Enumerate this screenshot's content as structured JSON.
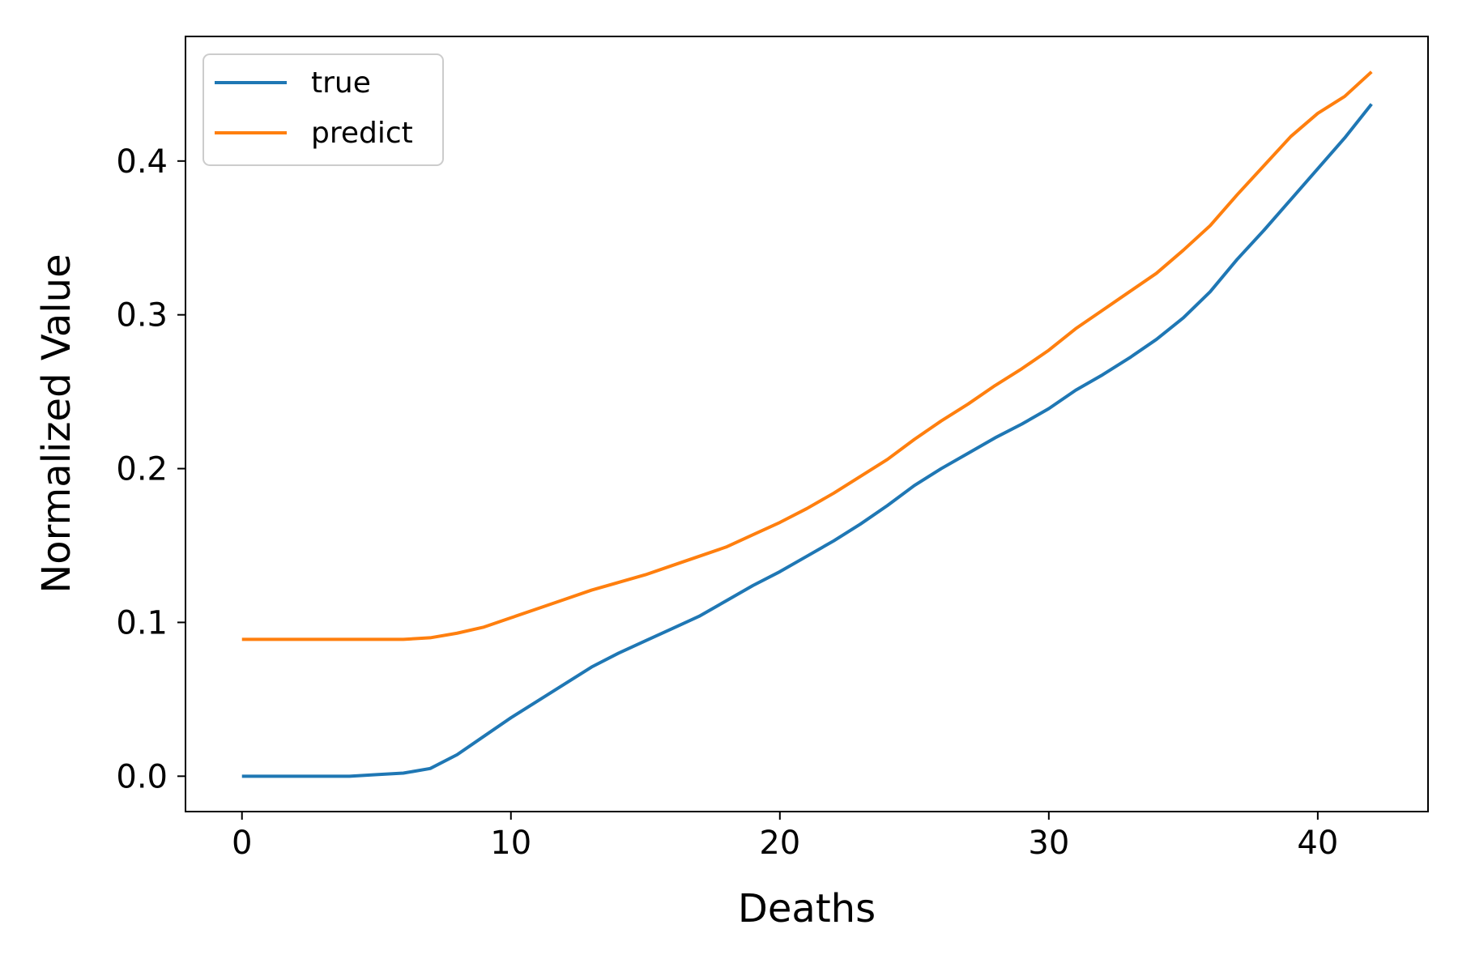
{
  "chart_data": {
    "type": "line",
    "xlabel": "Deaths",
    "ylabel": "Normalized Value",
    "xlim": [
      -2.1,
      44.1
    ],
    "ylim": [
      -0.023,
      0.481
    ],
    "xticks": [
      0,
      10,
      20,
      30,
      40
    ],
    "xtick_labels": [
      "0",
      "10",
      "20",
      "30",
      "40"
    ],
    "yticks": [
      0.0,
      0.1,
      0.2,
      0.3,
      0.4
    ],
    "ytick_labels": [
      "0.0",
      "0.1",
      "0.2",
      "0.3",
      "0.4"
    ],
    "grid": false,
    "legend_position": "upper-left",
    "x": [
      0,
      1,
      2,
      3,
      4,
      5,
      6,
      7,
      8,
      9,
      10,
      11,
      12,
      13,
      14,
      15,
      16,
      17,
      18,
      19,
      20,
      21,
      22,
      23,
      24,
      25,
      26,
      27,
      28,
      29,
      30,
      31,
      32,
      33,
      34,
      35,
      36,
      37,
      38,
      39,
      40,
      41,
      42
    ],
    "series": [
      {
        "name": "true",
        "color": "#1f77b4",
        "values": [
          0.0,
          0.0,
          0.0,
          0.0,
          0.0,
          0.001,
          0.002,
          0.005,
          0.014,
          0.026,
          0.038,
          0.049,
          0.06,
          0.071,
          0.08,
          0.088,
          0.096,
          0.104,
          0.114,
          0.124,
          0.133,
          0.143,
          0.153,
          0.164,
          0.176,
          0.189,
          0.2,
          0.21,
          0.22,
          0.229,
          0.239,
          0.251,
          0.261,
          0.272,
          0.284,
          0.298,
          0.315,
          0.336,
          0.355,
          0.375,
          0.395,
          0.415,
          0.437
        ]
      },
      {
        "name": "predict",
        "color": "#ff7f0e",
        "values": [
          0.089,
          0.089,
          0.089,
          0.089,
          0.089,
          0.089,
          0.089,
          0.09,
          0.093,
          0.097,
          0.103,
          0.109,
          0.115,
          0.121,
          0.126,
          0.131,
          0.137,
          0.143,
          0.149,
          0.157,
          0.165,
          0.174,
          0.184,
          0.195,
          0.206,
          0.219,
          0.231,
          0.242,
          0.254,
          0.265,
          0.277,
          0.291,
          0.303,
          0.315,
          0.327,
          0.342,
          0.358,
          0.378,
          0.397,
          0.416,
          0.431,
          0.442,
          0.458
        ]
      }
    ]
  }
}
